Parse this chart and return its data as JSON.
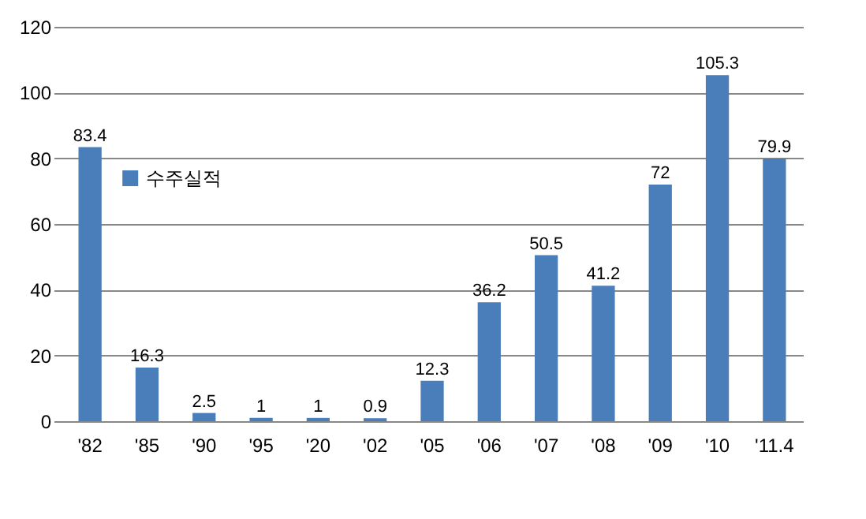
{
  "chart_data": {
    "type": "bar",
    "categories": [
      "'82",
      "'85",
      "'90",
      "'95",
      "'20",
      "'02",
      "'05",
      "'06",
      "'07",
      "'08",
      "'09",
      "'10",
      "'11.4"
    ],
    "series": [
      {
        "name": "수주실적",
        "color": "#4a7ebb",
        "values": [
          83.4,
          16.3,
          2.5,
          1,
          1,
          0.9,
          12.3,
          36.2,
          50.5,
          41.2,
          72,
          105.3,
          79.9
        ]
      }
    ],
    "ylim": [
      0,
      120
    ],
    "yticks": [
      0,
      20,
      40,
      60,
      80,
      100,
      120
    ],
    "grid": "y",
    "legend": "top left",
    "data_labels": true
  }
}
